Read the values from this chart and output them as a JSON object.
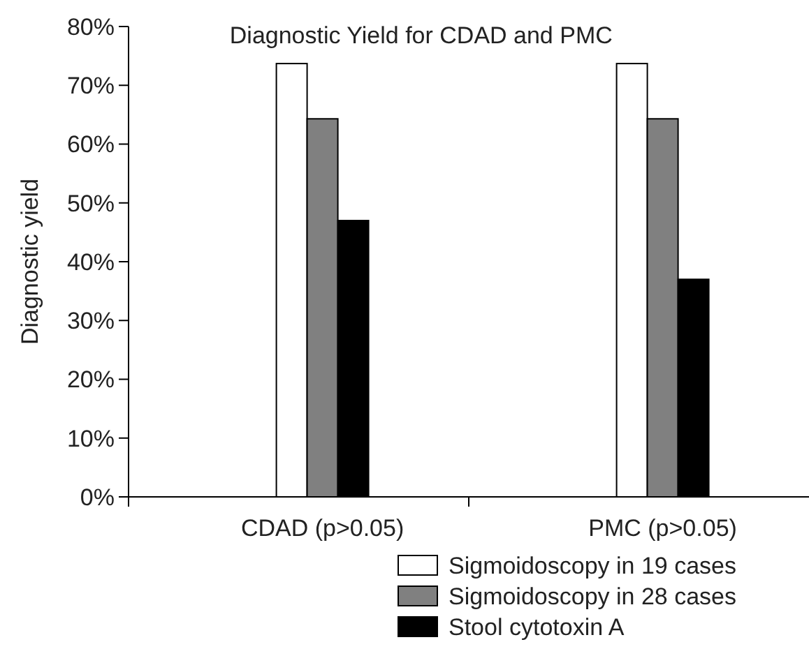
{
  "chart_data": {
    "type": "bar",
    "title": "Diagnostic Yield for CDAD and PMC",
    "ylabel": "Diagnostic yield",
    "categories": [
      "CDAD (p>0.05)",
      "PMC (p>0.05)"
    ],
    "series": [
      {
        "name": "Sigmoidoscopy in 19 cases",
        "color": "#ffffff",
        "values": [
          73.7,
          73.7
        ]
      },
      {
        "name": "Sigmoidoscopy in 28 cases",
        "color": "#808080",
        "values": [
          64.3,
          64.3
        ]
      },
      {
        "name": "Stool cytotoxin A",
        "color": "#000000",
        "values": [
          47,
          37
        ]
      }
    ],
    "ylim": [
      0,
      80
    ],
    "yticks": [
      {
        "value": 0,
        "label": "0%"
      },
      {
        "value": 10,
        "label": "10%"
      },
      {
        "value": 20,
        "label": "20%"
      },
      {
        "value": 30,
        "label": "30%"
      },
      {
        "value": 40,
        "label": "40%"
      },
      {
        "value": 50,
        "label": "50%"
      },
      {
        "value": 60,
        "label": "60%"
      },
      {
        "value": 70,
        "label": "70%"
      },
      {
        "value": 80,
        "label": "80%"
      }
    ],
    "grid": false,
    "legend": "bottom right"
  }
}
